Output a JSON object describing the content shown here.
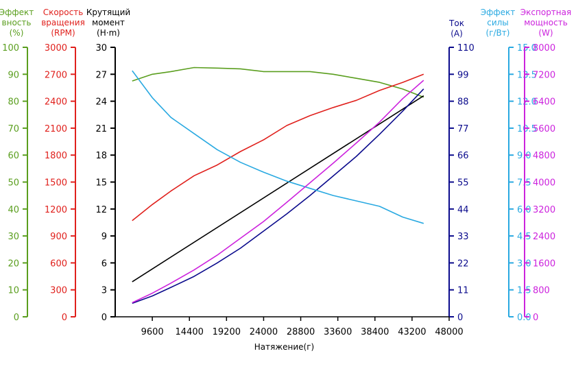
{
  "chart_data": {
    "type": "line",
    "xlabel": "Натяжение(г)",
    "x_ticks": [
      "9600",
      "14400",
      "19200",
      "24000",
      "28800",
      "33600",
      "38400",
      "43200",
      "48000"
    ],
    "xlim": [
      4800,
      48000
    ],
    "axes": [
      {
        "key": "eff",
        "title": [
          "Эффект",
          "вность",
          "(%)"
        ],
        "color": "#5a9e1e",
        "side": "left",
        "range": [
          0,
          100
        ],
        "ticks": [
          "0",
          "10",
          "20",
          "30",
          "40",
          "50",
          "60",
          "70",
          "80",
          "90",
          "100"
        ]
      },
      {
        "key": "rpm",
        "title": [
          "Скорость",
          "вращения",
          "(RPM)"
        ],
        "color": "#e0201c",
        "side": "left",
        "range": [
          0,
          3000
        ],
        "ticks": [
          "0",
          "300",
          "600",
          "900",
          "1200",
          "1500",
          "1800",
          "2100",
          "2400",
          "2700",
          "3000"
        ]
      },
      {
        "key": "torque",
        "title": [
          "Крутящий",
          "момент",
          "(H·m)"
        ],
        "color": "#000000",
        "side": "left",
        "range": [
          0,
          30
        ],
        "ticks": [
          "0",
          "3",
          "6",
          "9",
          "12",
          "15",
          "18",
          "21",
          "24",
          "27",
          "30"
        ]
      },
      {
        "key": "current",
        "title": [
          "Ток",
          "(A)"
        ],
        "color": "#0a0a8c",
        "side": "right",
        "range": [
          0,
          110
        ],
        "ticks": [
          "0",
          "11",
          "22",
          "33",
          "44",
          "55",
          "66",
          "77",
          "88",
          "99",
          "110"
        ]
      },
      {
        "key": "force_eff",
        "title": [
          "Эффект",
          "силы",
          "(г/Вт)"
        ],
        "color": "#29a9e1",
        "side": "right",
        "range": [
          0,
          15
        ],
        "ticks": [
          "0.0",
          "1.5",
          "3.0",
          "4.5",
          "6.0",
          "7.5",
          "9.0",
          "10.5",
          "12.0",
          "13.5",
          "15.0"
        ]
      },
      {
        "key": "power",
        "title": [
          "Экспортная",
          "мощность",
          "(W)"
        ],
        "color": "#cc22dd",
        "side": "right",
        "range": [
          0,
          8000
        ],
        "ticks": [
          "0",
          "800",
          "1600",
          "2400",
          "3200",
          "4000",
          "4800",
          "5600",
          "6400",
          "7200",
          "8000"
        ]
      }
    ],
    "series": [
      {
        "axis": "eff",
        "color": "#5a9e1e",
        "points": [
          [
            7000,
            87.5
          ],
          [
            9600,
            90
          ],
          [
            12000,
            91
          ],
          [
            15000,
            92.5
          ],
          [
            18000,
            92.3
          ],
          [
            21000,
            92
          ],
          [
            24000,
            91
          ],
          [
            27000,
            91
          ],
          [
            30000,
            91
          ],
          [
            33000,
            90
          ],
          [
            36000,
            88.5
          ],
          [
            39000,
            87
          ],
          [
            42000,
            84.5
          ],
          [
            44700,
            81.5
          ]
        ]
      },
      {
        "axis": "rpm",
        "color": "#e0201c",
        "points": [
          [
            7000,
            1070
          ],
          [
            9600,
            1250
          ],
          [
            12000,
            1400
          ],
          [
            15000,
            1570
          ],
          [
            18000,
            1690
          ],
          [
            21000,
            1840
          ],
          [
            24000,
            1970
          ],
          [
            27000,
            2130
          ],
          [
            30000,
            2240
          ],
          [
            33000,
            2330
          ],
          [
            36000,
            2410
          ],
          [
            39000,
            2520
          ],
          [
            42000,
            2610
          ],
          [
            44700,
            2700
          ]
        ]
      },
      {
        "axis": "torque",
        "color": "#000000",
        "points": [
          [
            7000,
            3.9
          ],
          [
            44700,
            24.6
          ]
        ]
      },
      {
        "axis": "current",
        "color": "#0a0a8c",
        "points": [
          [
            7000,
            5.5
          ],
          [
            9600,
            8.5
          ],
          [
            12000,
            12
          ],
          [
            15000,
            16.5
          ],
          [
            18000,
            22
          ],
          [
            21000,
            28
          ],
          [
            24000,
            35
          ],
          [
            27000,
            42
          ],
          [
            30000,
            49.5
          ],
          [
            33000,
            57.5
          ],
          [
            36000,
            65.5
          ],
          [
            39000,
            74.5
          ],
          [
            42000,
            84
          ],
          [
            44700,
            93
          ]
        ]
      },
      {
        "axis": "force_eff",
        "color": "#29a9e1",
        "points": [
          [
            7000,
            13.7
          ],
          [
            9600,
            12.2
          ],
          [
            12000,
            11.1
          ],
          [
            15000,
            10.2
          ],
          [
            18000,
            9.3
          ],
          [
            21000,
            8.6
          ],
          [
            24000,
            8.05
          ],
          [
            27000,
            7.55
          ],
          [
            30000,
            7.15
          ],
          [
            33000,
            6.75
          ],
          [
            36000,
            6.45
          ],
          [
            39000,
            6.15
          ],
          [
            42000,
            5.55
          ],
          [
            44700,
            5.2
          ]
        ]
      },
      {
        "axis": "power",
        "color": "#cc22dd",
        "points": [
          [
            7000,
            420
          ],
          [
            9600,
            700
          ],
          [
            12000,
            1000
          ],
          [
            15000,
            1390
          ],
          [
            18000,
            1830
          ],
          [
            21000,
            2330
          ],
          [
            24000,
            2830
          ],
          [
            27000,
            3400
          ],
          [
            30000,
            3980
          ],
          [
            33000,
            4560
          ],
          [
            36000,
            5160
          ],
          [
            39000,
            5780
          ],
          [
            42000,
            6480
          ],
          [
            44700,
            7020
          ]
        ]
      }
    ]
  }
}
